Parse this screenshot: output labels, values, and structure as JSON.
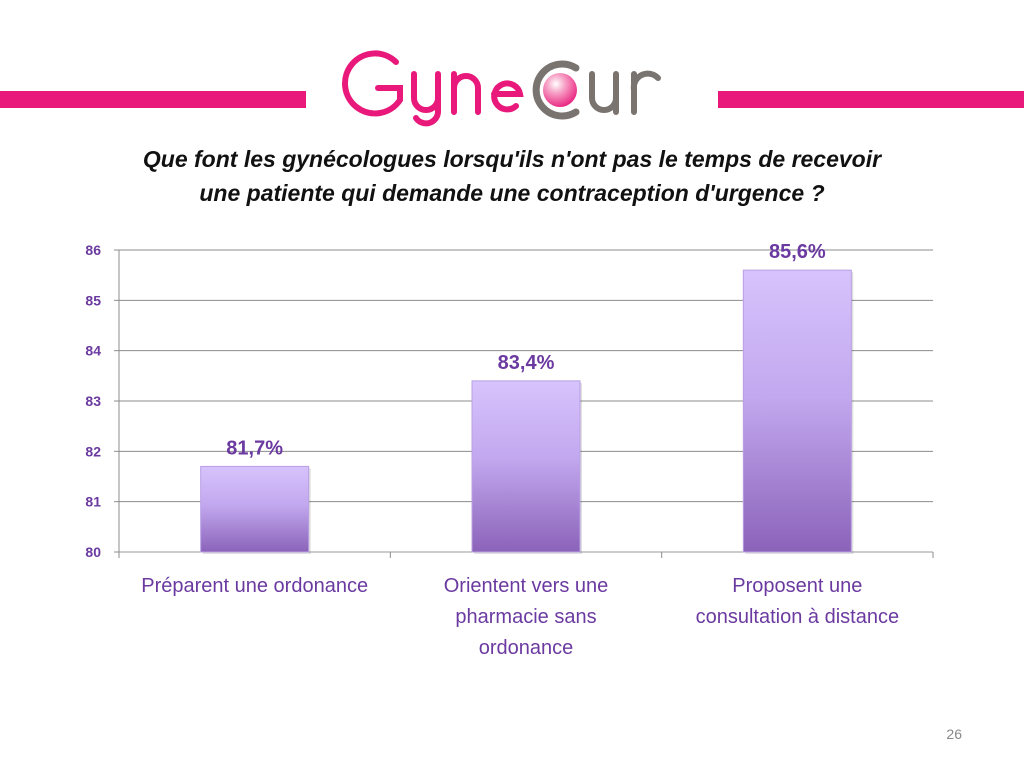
{
  "header": {
    "logo_text": "GyneCur",
    "title_lines": [
      "Que font les gynécologues lorsqu'ils n'ont pas le temps de recevoir",
      "une patiente qui demande une contraception d'urgence ?"
    ]
  },
  "colors": {
    "brand_pink": "#e8197a",
    "logo_gray": "#7a7470",
    "bar_top": "#d7c3fc",
    "bar_bottom": "#8b63b9",
    "label_purple": "#6b3aa0"
  },
  "chart_data": {
    "type": "bar",
    "categories": [
      [
        "Préparent une ordonance"
      ],
      [
        "Orientent vers une",
        "pharmacie sans",
        "ordonance"
      ],
      [
        "Proposent une",
        "consultation à distance"
      ]
    ],
    "values": [
      81.7,
      83.4,
      85.6
    ],
    "data_labels": [
      "81,7%",
      "83,4%",
      "85,6%"
    ],
    "ylim": [
      80,
      86
    ],
    "yticks": [
      "80",
      "81",
      "82",
      "83",
      "84",
      "85",
      "86"
    ],
    "grid": true,
    "legend": "none"
  },
  "footer": {
    "page_number": "26"
  }
}
